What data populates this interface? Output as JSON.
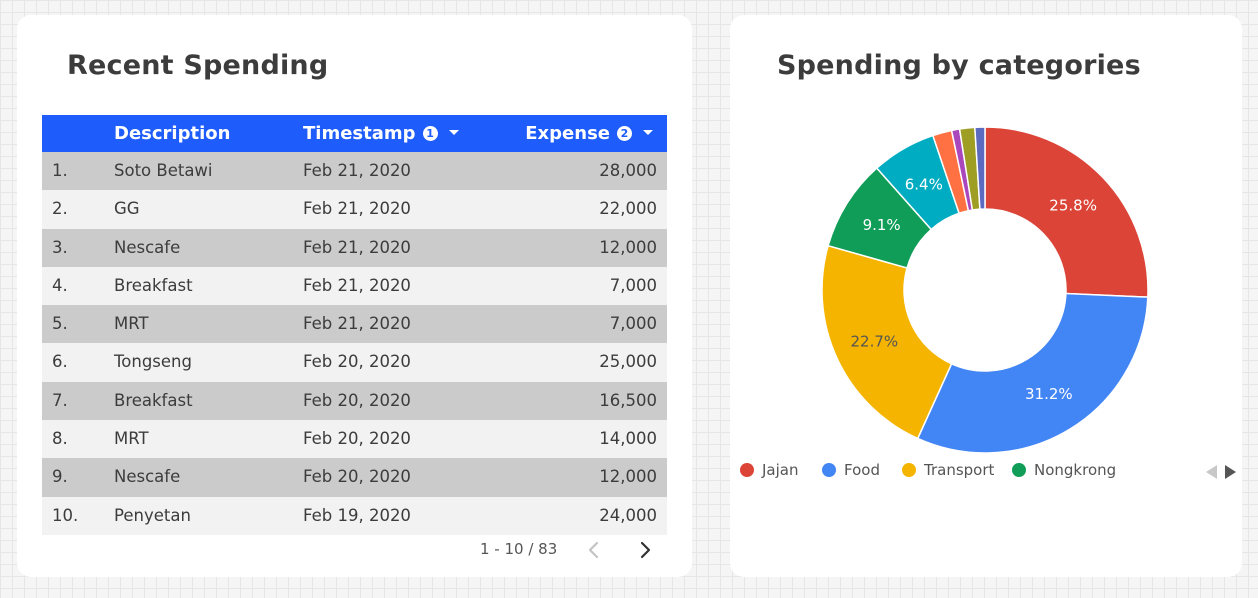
{
  "recent_spending": {
    "title": "Recent Spending",
    "columns": {
      "description": "Description",
      "timestamp": "Timestamp",
      "timestamp_sort_order": "1",
      "expense": "Expense",
      "expense_sort_order": "2"
    },
    "rows": [
      {
        "num": "1.",
        "description": "Soto Betawi",
        "timestamp": "Feb 21, 2020",
        "expense": "28,000"
      },
      {
        "num": "2.",
        "description": "GG",
        "timestamp": "Feb 21, 2020",
        "expense": "22,000"
      },
      {
        "num": "3.",
        "description": "Nescafe",
        "timestamp": "Feb 21, 2020",
        "expense": "12,000"
      },
      {
        "num": "4.",
        "description": "Breakfast",
        "timestamp": "Feb 21, 2020",
        "expense": "7,000"
      },
      {
        "num": "5.",
        "description": "MRT",
        "timestamp": "Feb 21, 2020",
        "expense": "7,000"
      },
      {
        "num": "6.",
        "description": "Tongseng",
        "timestamp": "Feb 20, 2020",
        "expense": "25,000"
      },
      {
        "num": "7.",
        "description": "Breakfast",
        "timestamp": "Feb 20, 2020",
        "expense": "16,500"
      },
      {
        "num": "8.",
        "description": "MRT",
        "timestamp": "Feb 20, 2020",
        "expense": "14,000"
      },
      {
        "num": "9.",
        "description": "Nescafe",
        "timestamp": "Feb 20, 2020",
        "expense": "12,000"
      },
      {
        "num": "10.",
        "description": "Penyetan",
        "timestamp": "Feb 19, 2020",
        "expense": "24,000"
      }
    ],
    "pagination": {
      "label": "1 - 10 / 83",
      "prev_icon": "chevron-left-icon",
      "next_icon": "chevron-right-icon"
    }
  },
  "spending_by_categories": {
    "title": "Spending by categories",
    "legend_nav": {
      "prev_icon": "triangle-left-icon",
      "next_icon": "triangle-right-icon"
    }
  },
  "colors": {
    "table_header": "#1f5cfc",
    "row_odd": "#cbcbcb",
    "row_even": "#f2f2f2"
  },
  "chart_data": {
    "type": "pie",
    "donut": true,
    "start": "top, clockwise",
    "labels": [
      "Jajan",
      "Food",
      "Transport",
      "Nongkrong",
      "",
      "",
      "",
      "",
      ""
    ],
    "values": [
      25.8,
      31.2,
      22.7,
      9.1,
      6.4,
      1.9,
      0.8,
      1.5,
      1.0
    ],
    "value_labels": [
      "25.8%",
      "31.2%",
      "22.7%",
      "9.1%",
      "6.4%",
      "",
      "",
      "",
      ""
    ],
    "colors": [
      "#db4437",
      "#4285f4",
      "#f4b400",
      "#0f9d58",
      "#00acc1",
      "#ff7043",
      "#ab47bc",
      "#9e9d24",
      "#5c6bc0"
    ],
    "legend_visible": [
      "Jajan",
      "Food",
      "Transport",
      "Nongkrong"
    ],
    "legend_position": "bottom"
  }
}
